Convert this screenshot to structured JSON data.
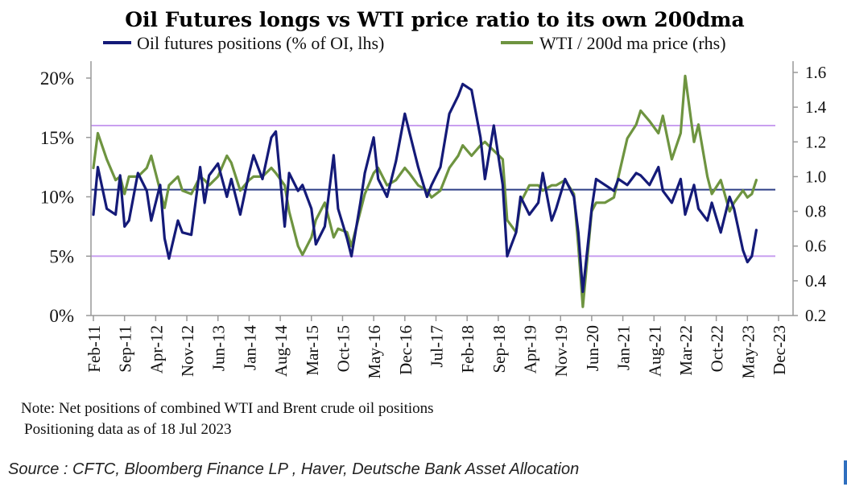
{
  "chart_data": {
    "type": "line",
    "title": "Oil Futures longs vs WTI price ratio to its own 200dma",
    "legend_placement": "top",
    "x_tick_labels": [
      "Feb-11",
      "Sep-11",
      "Apr-12",
      "Nov-12",
      "Jun-13",
      "Jan-14",
      "Aug-14",
      "Mar-15",
      "Oct-15",
      "May-16",
      "Dec-16",
      "Jul-17",
      "Feb-18",
      "Sep-18",
      "Apr-19",
      "Nov-19",
      "Jun-20",
      "Jan-21",
      "Aug-21",
      "Mar-22",
      "Oct-22",
      "May-23",
      "Dec-23"
    ],
    "x_range": [
      "2011-02",
      "2023-12"
    ],
    "y_left": {
      "min": 0,
      "max": 20,
      "ticks": [
        0,
        5,
        10,
        15,
        20
      ],
      "tick_labels": [
        "0%",
        "5%",
        "10%",
        "15%",
        "20%"
      ]
    },
    "y_right": {
      "min": 0.2,
      "max": 1.6,
      "ticks": [
        0.2,
        0.4,
        0.6,
        0.8,
        1.0,
        1.2,
        1.4,
        1.6
      ],
      "tick_labels": [
        "0.2",
        "0.4",
        "0.6",
        "0.8",
        "1.0",
        "1.2",
        "1.4",
        "1.6"
      ]
    },
    "grid": false,
    "reference_lines": [
      {
        "axis": "left",
        "value": 16,
        "color": "#c9a0f0"
      },
      {
        "axis": "left",
        "value": 10.6,
        "color": "#2e3f86"
      },
      {
        "axis": "left",
        "value": 5,
        "color": "#c9a0f0"
      }
    ],
    "series": [
      {
        "name": "Oil futures positions (% of OI, lhs)",
        "axis": "left",
        "color": "#141a78",
        "x": [
          "2011-02",
          "2011-03",
          "2011-05",
          "2011-07",
          "2011-08",
          "2011-09",
          "2011-10",
          "2011-12",
          "2012-02",
          "2012-03",
          "2012-05",
          "2012-06",
          "2012-07",
          "2012-09",
          "2012-10",
          "2012-12",
          "2013-02",
          "2013-03",
          "2013-04",
          "2013-06",
          "2013-08",
          "2013-09",
          "2013-11",
          "2014-01",
          "2014-02",
          "2014-04",
          "2014-06",
          "2014-07",
          "2014-09",
          "2014-10",
          "2014-12",
          "2015-01",
          "2015-03",
          "2015-04",
          "2015-06",
          "2015-08",
          "2015-09",
          "2015-11",
          "2015-12",
          "2016-02",
          "2016-03",
          "2016-05",
          "2016-06",
          "2016-08",
          "2016-10",
          "2016-12",
          "2017-01",
          "2017-03",
          "2017-05",
          "2017-06",
          "2017-08",
          "2017-10",
          "2017-12",
          "2018-01",
          "2018-03",
          "2018-05",
          "2018-06",
          "2018-08",
          "2018-10",
          "2018-11",
          "2019-01",
          "2019-02",
          "2019-04",
          "2019-06",
          "2019-07",
          "2019-09",
          "2019-10",
          "2019-12",
          "2020-02",
          "2020-03",
          "2020-04",
          "2020-06",
          "2020-07",
          "2020-09",
          "2020-11",
          "2020-12",
          "2021-02",
          "2021-04",
          "2021-05",
          "2021-07",
          "2021-09",
          "2021-10",
          "2021-12",
          "2022-02",
          "2022-03",
          "2022-05",
          "2022-06",
          "2022-08",
          "2022-09",
          "2022-11",
          "2023-01",
          "2023-02",
          "2023-04",
          "2023-05",
          "2023-06",
          "2023-07"
        ],
        "values": [
          8.5,
          12.5,
          9.0,
          8.5,
          11.8,
          7.5,
          8.0,
          12.0,
          10.5,
          8.0,
          11.0,
          6.5,
          4.8,
          8.0,
          7.0,
          6.8,
          12.5,
          9.5,
          11.8,
          12.8,
          10.0,
          11.5,
          8.5,
          12.0,
          13.5,
          11.5,
          15.0,
          15.5,
          7.5,
          12.0,
          10.5,
          11.0,
          9.0,
          6.0,
          7.5,
          13.5,
          9.0,
          6.5,
          5.0,
          9.5,
          12.0,
          15.0,
          11.5,
          10.0,
          13.0,
          17.0,
          15.5,
          12.5,
          10.0,
          11.0,
          12.5,
          17.0,
          18.5,
          19.5,
          19.0,
          15.0,
          11.5,
          16.0,
          11.0,
          5.0,
          7.0,
          10.0,
          8.5,
          9.5,
          12.0,
          8.0,
          9.0,
          11.5,
          10.0,
          7.0,
          2.0,
          9.0,
          11.5,
          11.0,
          10.5,
          11.5,
          11.0,
          12.0,
          11.8,
          11.0,
          12.5,
          10.5,
          9.5,
          11.5,
          8.5,
          11.0,
          9.0,
          8.0,
          9.5,
          7.0,
          10.0,
          9.0,
          5.5,
          4.5,
          5.0,
          7.2
        ]
      },
      {
        "name": "WTI / 200d ma price (rhs)",
        "axis": "right",
        "color": "#6e9440",
        "x": [
          "2011-02",
          "2011-03",
          "2011-05",
          "2011-07",
          "2011-08",
          "2011-09",
          "2011-10",
          "2011-12",
          "2012-02",
          "2012-03",
          "2012-05",
          "2012-06",
          "2012-07",
          "2012-09",
          "2012-10",
          "2012-12",
          "2013-02",
          "2013-03",
          "2013-04",
          "2013-06",
          "2013-08",
          "2013-09",
          "2013-11",
          "2014-01",
          "2014-02",
          "2014-04",
          "2014-06",
          "2014-07",
          "2014-09",
          "2014-10",
          "2014-12",
          "2015-01",
          "2015-03",
          "2015-04",
          "2015-06",
          "2015-08",
          "2015-09",
          "2015-11",
          "2015-12",
          "2016-02",
          "2016-03",
          "2016-05",
          "2016-06",
          "2016-08",
          "2016-10",
          "2016-12",
          "2017-01",
          "2017-03",
          "2017-05",
          "2017-06",
          "2017-08",
          "2017-10",
          "2017-12",
          "2018-01",
          "2018-03",
          "2018-05",
          "2018-06",
          "2018-08",
          "2018-10",
          "2018-11",
          "2019-01",
          "2019-02",
          "2019-04",
          "2019-06",
          "2019-07",
          "2019-09",
          "2019-10",
          "2019-12",
          "2020-02",
          "2020-03",
          "2020-04",
          "2020-06",
          "2020-07",
          "2020-09",
          "2020-11",
          "2020-12",
          "2021-02",
          "2021-04",
          "2021-05",
          "2021-07",
          "2021-09",
          "2021-10",
          "2021-12",
          "2022-02",
          "2022-03",
          "2022-05",
          "2022-06",
          "2022-08",
          "2022-09",
          "2022-11",
          "2023-01",
          "2023-02",
          "2023-04",
          "2023-05",
          "2023-06",
          "2023-07"
        ],
        "values": [
          1.05,
          1.25,
          1.1,
          0.98,
          1.0,
          0.9,
          1.0,
          1.0,
          1.05,
          1.12,
          0.92,
          0.82,
          0.95,
          1.0,
          0.92,
          0.9,
          1.0,
          0.98,
          0.95,
          1.0,
          1.12,
          1.08,
          0.92,
          0.98,
          1.0,
          1.0,
          1.05,
          1.02,
          0.95,
          0.8,
          0.6,
          0.55,
          0.65,
          0.75,
          0.85,
          0.65,
          0.7,
          0.68,
          0.6,
          0.8,
          0.9,
          1.02,
          1.05,
          0.95,
          0.98,
          1.05,
          1.02,
          0.95,
          0.92,
          0.88,
          0.92,
          1.05,
          1.12,
          1.18,
          1.12,
          1.18,
          1.2,
          1.15,
          1.1,
          0.75,
          0.68,
          0.85,
          0.95,
          0.95,
          0.92,
          0.95,
          0.95,
          0.98,
          0.9,
          0.6,
          0.25,
          0.8,
          0.85,
          0.85,
          0.88,
          1.0,
          1.22,
          1.3,
          1.38,
          1.32,
          1.25,
          1.35,
          1.1,
          1.25,
          1.58,
          1.2,
          1.3,
          1.0,
          0.9,
          0.98,
          0.8,
          0.85,
          0.92,
          0.88,
          0.9,
          0.98
        ]
      }
    ]
  },
  "notes": {
    "line1": "Note: Net positions of combined WTI and Brent crude oil positions",
    "line2": "Positioning data as of 18 Jul 2023"
  },
  "source": "Source : CFTC, Bloomberg Finance LP , Haver, Deutsche Bank Asset Allocation"
}
